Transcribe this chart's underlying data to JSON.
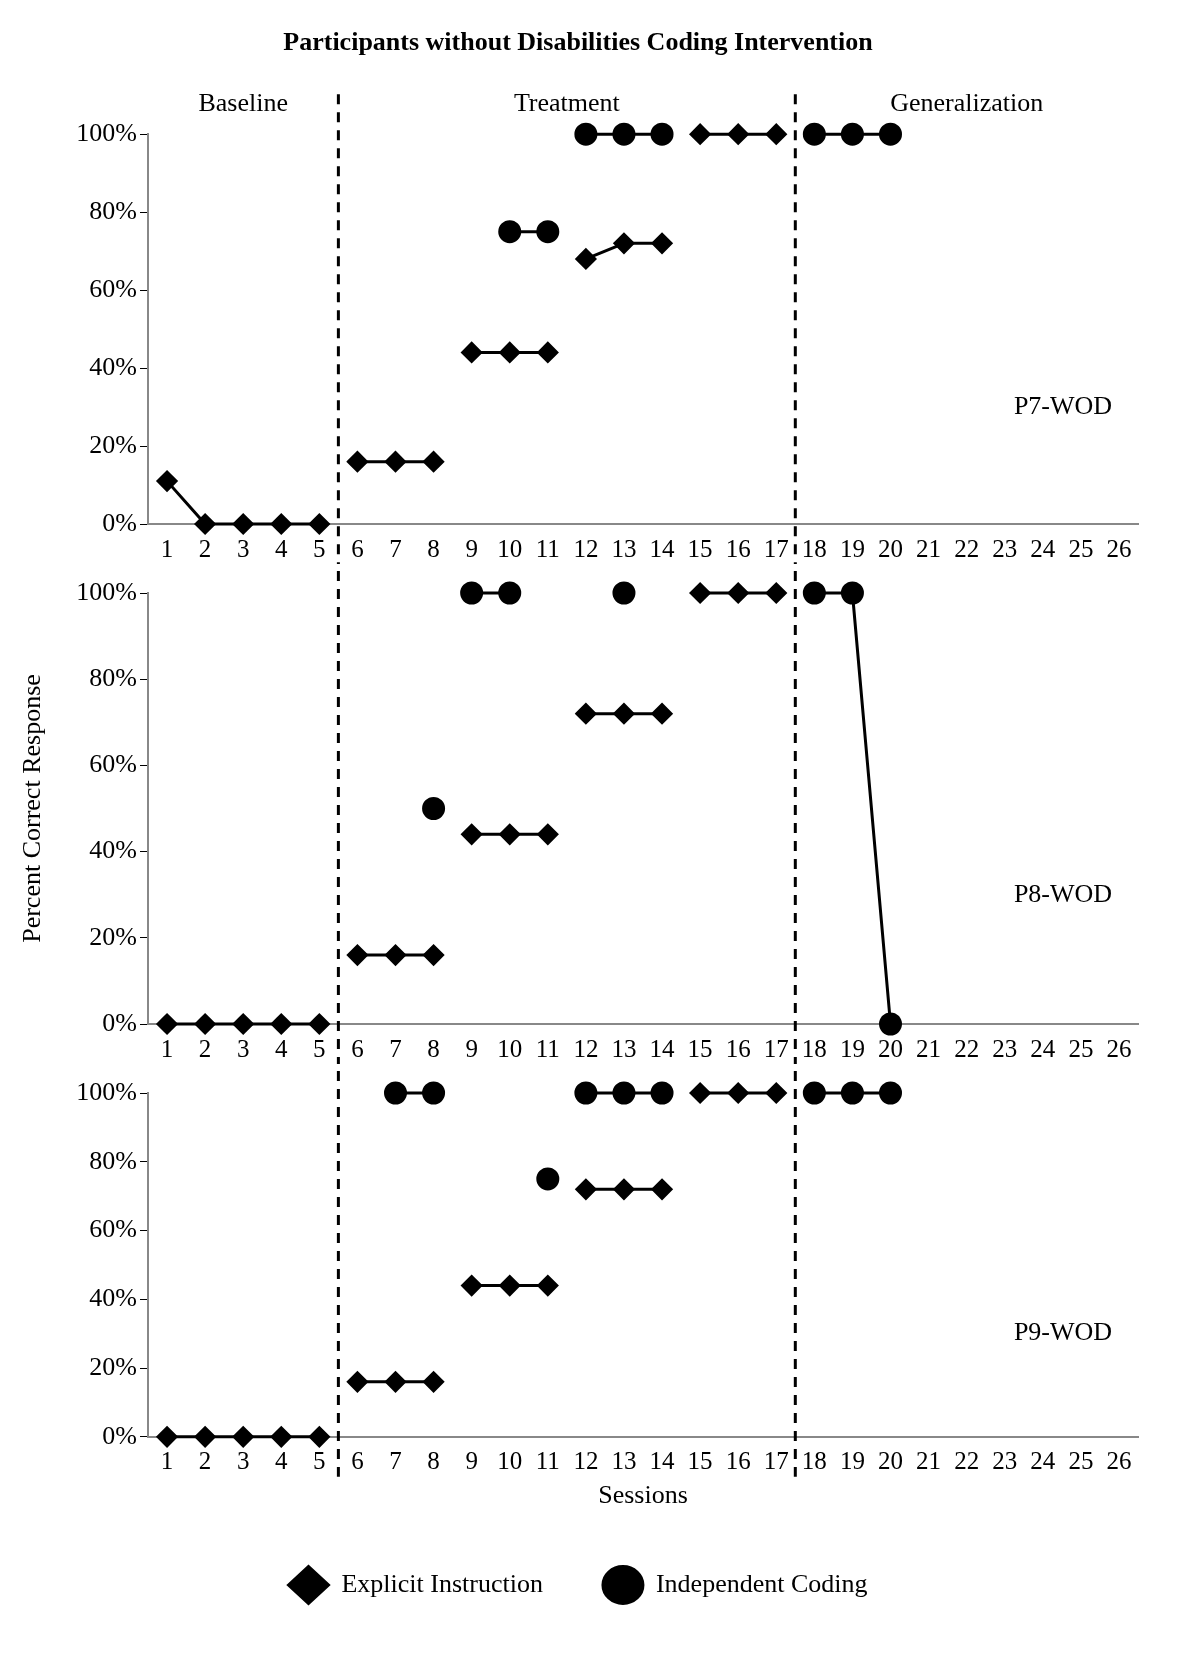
{
  "chart_data": [
    {
      "type": "line",
      "title": "Participants without Disabilities Coding Intervention",
      "annotations": [
        "Baseline",
        "Treatment",
        "Generalization",
        "P7-WOD"
      ],
      "xlim": [
        0.5,
        26.5
      ],
      "xticks": [
        1,
        2,
        3,
        4,
        5,
        6,
        7,
        8,
        9,
        10,
        11,
        12,
        13,
        14,
        15,
        16,
        17,
        18,
        19,
        20,
        21,
        22,
        23,
        24,
        25,
        26
      ],
      "ylim": [
        0,
        100
      ],
      "yticks": [
        {
          "value": 0,
          "label": "0%"
        },
        {
          "value": 20,
          "label": "20%"
        },
        {
          "value": 40,
          "label": "40%"
        },
        {
          "value": 60,
          "label": "60%"
        },
        {
          "value": 80,
          "label": "80%"
        },
        {
          "value": 100,
          "label": "100%"
        }
      ],
      "grid": false,
      "legend": false,
      "ref_lines": [
        {
          "axis": "x",
          "value": 5.5,
          "line_style": "dashed",
          "color": "#000000"
        },
        {
          "axis": "x",
          "value": 17.5,
          "line_style": "dashed",
          "color": "#000000"
        }
      ],
      "series": [
        {
          "color": "#000000",
          "marker": "diamond",
          "x": [
            1,
            2,
            3,
            4,
            5,
            5.5,
            6,
            7,
            8,
            8.5,
            9,
            10,
            11,
            11.5,
            12,
            13,
            14,
            14.5,
            15,
            16,
            17
          ],
          "values": [
            11,
            0,
            0,
            0,
            0,
            null,
            16,
            16,
            16,
            null,
            44,
            44,
            44,
            null,
            68,
            72,
            72,
            null,
            100,
            100,
            100
          ]
        },
        {
          "color": "#000000",
          "marker": "circle",
          "x": [
            10,
            11,
            11.5,
            12,
            13,
            14,
            17.5,
            18,
            19,
            20
          ],
          "values": [
            75,
            75,
            null,
            100,
            100,
            100,
            null,
            100,
            100,
            100
          ]
        }
      ]
    },
    {
      "type": "line",
      "ylabel": "Percent Correct Response",
      "annotations": [
        "P8-WOD"
      ],
      "xlim": [
        0.5,
        26.5
      ],
      "xticks": [
        1,
        2,
        3,
        4,
        5,
        6,
        7,
        8,
        9,
        10,
        11,
        12,
        13,
        14,
        15,
        16,
        17,
        18,
        19,
        20,
        21,
        22,
        23,
        24,
        25,
        26
      ],
      "ylim": [
        0,
        100
      ],
      "yticks": [
        {
          "value": 0,
          "label": "0%"
        },
        {
          "value": 20,
          "label": "20%"
        },
        {
          "value": 40,
          "label": "40%"
        },
        {
          "value": 60,
          "label": "60%"
        },
        {
          "value": 80,
          "label": "80%"
        },
        {
          "value": 100,
          "label": "100%"
        }
      ],
      "grid": false,
      "legend": false,
      "ref_lines": [
        {
          "axis": "x",
          "value": 5.5,
          "line_style": "dashed",
          "color": "#000000"
        },
        {
          "axis": "x",
          "value": 17.5,
          "line_style": "dashed",
          "color": "#000000"
        }
      ],
      "series": [
        {
          "color": "#000000",
          "marker": "diamond",
          "x": [
            1,
            2,
            3,
            4,
            5,
            5.5,
            6,
            7,
            8,
            8.5,
            9,
            10,
            11,
            11.5,
            12,
            13,
            14,
            14.5,
            15,
            16,
            17
          ],
          "values": [
            0,
            0,
            0,
            0,
            0,
            null,
            16,
            16,
            16,
            null,
            44,
            44,
            44,
            null,
            72,
            72,
            72,
            null,
            100,
            100,
            100
          ]
        },
        {
          "color": "#000000",
          "marker": "circle",
          "x": [
            8,
            8.5,
            9,
            10,
            11.5,
            13,
            17.5,
            18,
            19,
            20
          ],
          "values": [
            50,
            null,
            100,
            100,
            null,
            100,
            null,
            100,
            100,
            0
          ]
        }
      ]
    },
    {
      "type": "line",
      "xlabel": "Sessions",
      "annotations": [
        "P9-WOD"
      ],
      "xlim": [
        0.5,
        26.5
      ],
      "xticks": [
        1,
        2,
        3,
        4,
        5,
        6,
        7,
        8,
        9,
        10,
        11,
        12,
        13,
        14,
        15,
        16,
        17,
        18,
        19,
        20,
        21,
        22,
        23,
        24,
        25,
        26
      ],
      "ylim": [
        0,
        100
      ],
      "yticks": [
        {
          "value": 0,
          "label": "0%"
        },
        {
          "value": 20,
          "label": "20%"
        },
        {
          "value": 40,
          "label": "40%"
        },
        {
          "value": 60,
          "label": "60%"
        },
        {
          "value": 80,
          "label": "80%"
        },
        {
          "value": 100,
          "label": "100%"
        }
      ],
      "grid": false,
      "legend": "bottom",
      "ref_lines": [
        {
          "axis": "x",
          "value": 5.5,
          "line_style": "dashed",
          "color": "#000000"
        },
        {
          "axis": "x",
          "value": 17.5,
          "line_style": "dashed",
          "color": "#000000"
        }
      ],
      "series": [
        {
          "name": "Explicit Instruction",
          "color": "#000000",
          "marker": "diamond",
          "x": [
            1,
            2,
            3,
            4,
            5,
            5.5,
            6,
            7,
            8,
            8.5,
            9,
            10,
            11,
            11.5,
            12,
            13,
            14,
            14.5,
            15,
            16,
            17
          ],
          "values": [
            0,
            0,
            0,
            0,
            0,
            null,
            16,
            16,
            16,
            null,
            44,
            44,
            44,
            null,
            72,
            72,
            72,
            null,
            100,
            100,
            100
          ]
        },
        {
          "name": "Independent Coding",
          "color": "#000000",
          "marker": "circle",
          "x": [
            7,
            8,
            8.5,
            11,
            11.5,
            12,
            13,
            14,
            17.5,
            18,
            19,
            20
          ],
          "values": [
            100,
            100,
            null,
            75,
            null,
            100,
            100,
            100,
            null,
            100,
            100,
            100
          ]
        }
      ]
    }
  ]
}
